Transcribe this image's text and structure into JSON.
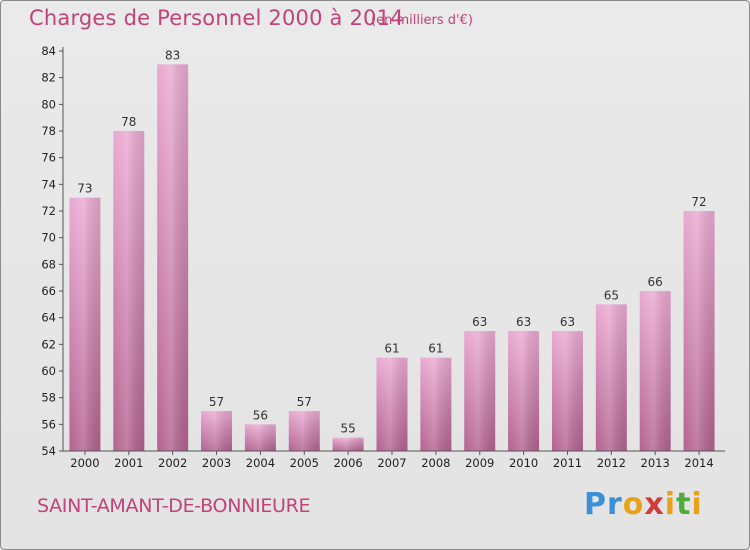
{
  "header": {
    "title": "Charges de Personnel 2000 à 2014",
    "subtitle": "(en milliers d'€)"
  },
  "footer": {
    "commune": "SAINT-AMANT-DE-BONNIEURE",
    "logo": "Proxiti"
  },
  "colors": {
    "accent": "#c2427b",
    "bar_light": "#e9a8cf",
    "bar_dark": "#b3628f"
  },
  "chart_data": {
    "type": "bar",
    "title": "Charges de Personnel 2000 à 2014",
    "subtitle": "(en milliers d'€)",
    "categories": [
      "2000",
      "2001",
      "2002",
      "2003",
      "2004",
      "2005",
      "2006",
      "2007",
      "2008",
      "2009",
      "2010",
      "2011",
      "2012",
      "2013",
      "2014"
    ],
    "values": [
      73,
      78,
      83,
      57,
      56,
      57,
      55,
      61,
      61,
      63,
      63,
      63,
      65,
      66,
      72
    ],
    "ylim": [
      54,
      84
    ],
    "yticks": [
      54,
      56,
      58,
      60,
      62,
      64,
      66,
      68,
      70,
      72,
      74,
      76,
      78,
      80,
      82,
      84
    ],
    "xlabel": "",
    "ylabel": "",
    "grid": false,
    "data_labels": true
  }
}
